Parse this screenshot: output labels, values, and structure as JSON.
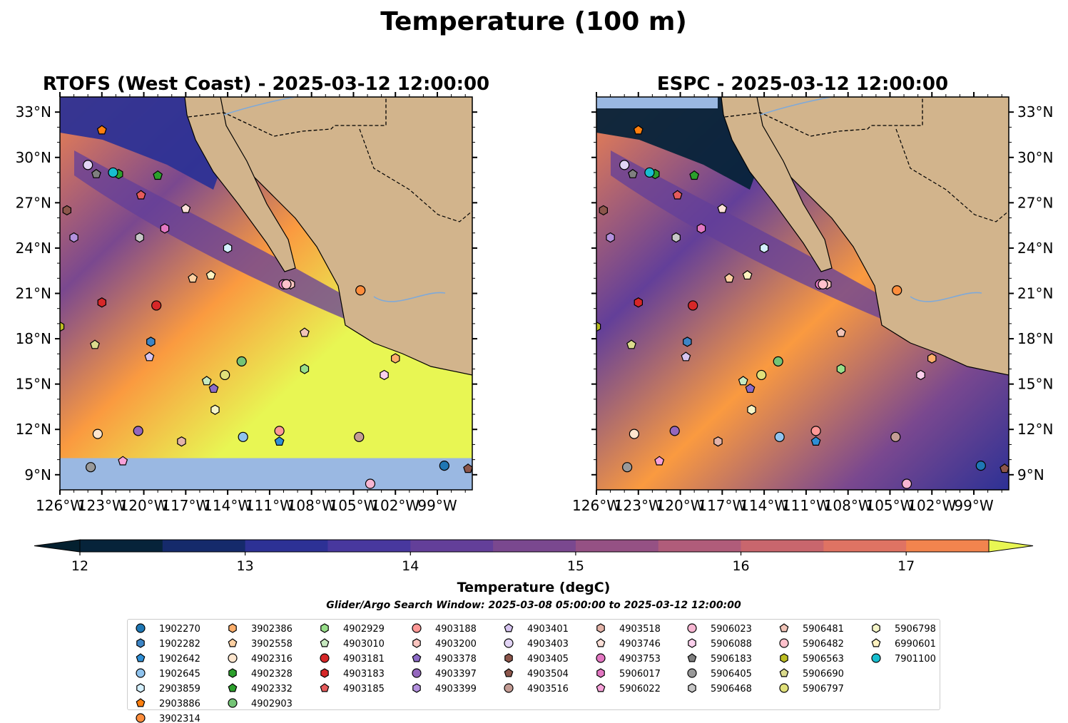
{
  "chart_data": {
    "type": "heatmap",
    "title": "Temperature (100 m)",
    "panels": [
      {
        "title": "RTOFS (West Coast) - 2025-03-12 12:00:00",
        "model": "RTOFS"
      },
      {
        "title": "ESPC - 2025-03-12 12:00:00",
        "model": "ESPC"
      }
    ],
    "lon_range": [
      -126,
      -96.5
    ],
    "lat_range": [
      8,
      34
    ],
    "x_ticks": [
      "126°W",
      "123°W",
      "120°W",
      "117°W",
      "114°W",
      "111°W",
      "108°W",
      "105°W",
      "102°W",
      "99°W"
    ],
    "x_tick_values": [
      -126,
      -123,
      -120,
      -117,
      -114,
      -111,
      -108,
      -105,
      -102,
      -99
    ],
    "y_ticks": [
      "33°N",
      "30°N",
      "27°N",
      "24°N",
      "21°N",
      "18°N",
      "15°N",
      "12°N",
      "9°N"
    ],
    "y_tick_values": [
      33,
      30,
      27,
      24,
      21,
      18,
      15,
      12,
      9
    ],
    "colorbar": {
      "label": "Temperature (degC)",
      "ticks": [
        "12",
        "13",
        "14",
        "15",
        "16",
        "17"
      ],
      "tick_values": [
        12,
        13,
        14,
        15,
        16,
        17
      ],
      "range": [
        12,
        17.5
      ],
      "extend": "both",
      "colors": [
        "#06233a",
        "#152a6b",
        "#2d3195",
        "#48389e",
        "#633f99",
        "#7a488f",
        "#955184",
        "#b05c7a",
        "#c9666d",
        "#df7363",
        "#f2844e",
        "#fa9a40",
        "#f8b83d",
        "#e8f653"
      ],
      "below_color": "#04202f",
      "above_color": "#e8f653"
    },
    "subtitle": "Glider/Argo Search Window: 2025-03-08 05:00:00 to 2025-03-12 12:00:00",
    "land_color": "#d2b48c",
    "ocean_nodata_color": "#9ab8e2",
    "floats": [
      {
        "id": "1902270",
        "marker": "circle",
        "color": "#1f77b4",
        "lon": -98.5,
        "lat": 9.6
      },
      {
        "id": "1902282",
        "marker": "hexagon",
        "color": "#3d85c6",
        "lon": -119.5,
        "lat": 17.8
      },
      {
        "id": "1902642",
        "marker": "pentagon",
        "color": "#2f8fd6",
        "lon": -110.3,
        "lat": 11.2
      },
      {
        "id": "1902645",
        "marker": "circle",
        "color": "#8fc3ee",
        "lon": -112.9,
        "lat": 11.5
      },
      {
        "id": "2903859",
        "marker": "hexagon",
        "color": "#d4f0ff",
        "lon": -114,
        "lat": 24
      },
      {
        "id": "2903886",
        "marker": "pentagon",
        "color": "#ff7f0e",
        "lon": -123,
        "lat": 31.8
      },
      {
        "id": "3902314",
        "marker": "circle",
        "color": "#fd8d3c",
        "lon": -104.5,
        "lat": 21.2
      },
      {
        "id": "3902386",
        "marker": "hexagon",
        "color": "#fdae6b",
        "lon": -102,
        "lat": 16.7
      },
      {
        "id": "3902558",
        "marker": "pentagon",
        "color": "#fdd0a2",
        "lon": -116.5,
        "lat": 22
      },
      {
        "id": "4902316",
        "marker": "circle",
        "color": "#fee6ce",
        "lon": -123.3,
        "lat": 11.7
      },
      {
        "id": "4902328",
        "marker": "hexagon",
        "color": "#2ca02c",
        "lon": -121.8,
        "lat": 28.9
      },
      {
        "id": "4902332",
        "marker": "pentagon",
        "color": "#2ca02c",
        "lon": -119,
        "lat": 28.8
      },
      {
        "id": "4902903",
        "marker": "circle",
        "color": "#74c476",
        "lon": -113,
        "lat": 16.5
      },
      {
        "id": "4902929",
        "marker": "hexagon",
        "color": "#98df8a",
        "lon": -108.5,
        "lat": 16
      },
      {
        "id": "4903010",
        "marker": "pentagon",
        "color": "#c7e9c0",
        "lon": -115.5,
        "lat": 15.2
      },
      {
        "id": "4903181",
        "marker": "circle",
        "color": "#d62728",
        "lon": -119.1,
        "lat": 20.2
      },
      {
        "id": "4903183",
        "marker": "hexagon",
        "color": "#d62728",
        "lon": -123,
        "lat": 20.4
      },
      {
        "id": "4903185",
        "marker": "pentagon",
        "color": "#e55b5b",
        "lon": -120.2,
        "lat": 27.5
      },
      {
        "id": "4903188",
        "marker": "circle",
        "color": "#ff9896",
        "lon": -110.3,
        "lat": 11.9
      },
      {
        "id": "4903200",
        "marker": "hexagon",
        "color": "#fcc5c0",
        "lon": -109.5,
        "lat": 21.6
      },
      {
        "id": "4903378",
        "marker": "pentagon",
        "color": "#8c6bc7",
        "lon": -115,
        "lat": 14.7
      },
      {
        "id": "4903397",
        "marker": "circle",
        "color": "#9467bd",
        "lon": -120.4,
        "lat": 11.9
      },
      {
        "id": "4903399",
        "marker": "hexagon",
        "color": "#b391de",
        "lon": -125,
        "lat": 24.7
      },
      {
        "id": "4903401",
        "marker": "pentagon",
        "color": "#d6c4f0",
        "lon": -119.6,
        "lat": 16.8
      },
      {
        "id": "4903403",
        "marker": "circle",
        "color": "#e2d4f5",
        "lon": -124,
        "lat": 29.5
      },
      {
        "id": "4903405",
        "marker": "hexagon",
        "color": "#8c564b",
        "lon": -125.5,
        "lat": 26.5
      },
      {
        "id": "4903504",
        "marker": "pentagon",
        "color": "#8c564b",
        "lon": -96.8,
        "lat": 9.4
      },
      {
        "id": "4903516",
        "marker": "circle",
        "color": "#c49c94",
        "lon": -104.6,
        "lat": 11.5
      },
      {
        "id": "4903518",
        "marker": "hexagon",
        "color": "#e3b3a8",
        "lon": -117.3,
        "lat": 11.2
      },
      {
        "id": "4903746",
        "marker": "pentagon",
        "color": "#fbe0d8",
        "lon": -117,
        "lat": 26.6
      },
      {
        "id": "4903753",
        "marker": "circle",
        "color": "#e377c2",
        "lon": -110,
        "lat": 21.6
      },
      {
        "id": "5906017",
        "marker": "hexagon",
        "color": "#e377c2",
        "lon": -118.5,
        "lat": 25.3
      },
      {
        "id": "5906022",
        "marker": "pentagon",
        "color": "#f7a1d9",
        "lon": -121.5,
        "lat": 9.9
      },
      {
        "id": "5906023",
        "marker": "circle",
        "color": "#f7b6d2",
        "lon": -103.8,
        "lat": 8.4
      },
      {
        "id": "5906088",
        "marker": "hexagon",
        "color": "#fbd0ec",
        "lon": -102.8,
        "lat": 15.6
      },
      {
        "id": "5906183",
        "marker": "pentagon",
        "color": "#7f7f7f",
        "lon": -123.4,
        "lat": 28.9
      },
      {
        "id": "5906405",
        "marker": "circle",
        "color": "#999999",
        "lon": -123.8,
        "lat": 9.5
      },
      {
        "id": "5906468",
        "marker": "hexagon",
        "color": "#c7c7c7",
        "lon": -120.3,
        "lat": 24.7
      },
      {
        "id": "5906481",
        "marker": "pentagon",
        "color": "#f1c4b8",
        "lon": -108.5,
        "lat": 18.4
      },
      {
        "id": "5906482",
        "marker": "circle",
        "color": "#ffc0cb",
        "lon": -109.8,
        "lat": 21.6
      },
      {
        "id": "5906563",
        "marker": "hexagon",
        "color": "#bcbd22",
        "lon": -126,
        "lat": 18.8
      },
      {
        "id": "5906690",
        "marker": "pentagon",
        "color": "#dbdb8d",
        "lon": -123.5,
        "lat": 17.6
      },
      {
        "id": "5906797",
        "marker": "circle",
        "color": "#e0e07a",
        "lon": -114.2,
        "lat": 15.6
      },
      {
        "id": "5906798",
        "marker": "hexagon",
        "color": "#f5f5c8",
        "lon": -114.9,
        "lat": 13.3
      },
      {
        "id": "6990601",
        "marker": "pentagon",
        "color": "#fff3c0",
        "lon": -115.2,
        "lat": 22.2
      },
      {
        "id": "7901100",
        "marker": "circle",
        "color": "#17becf",
        "lon": -122.2,
        "lat": 29
      }
    ]
  }
}
